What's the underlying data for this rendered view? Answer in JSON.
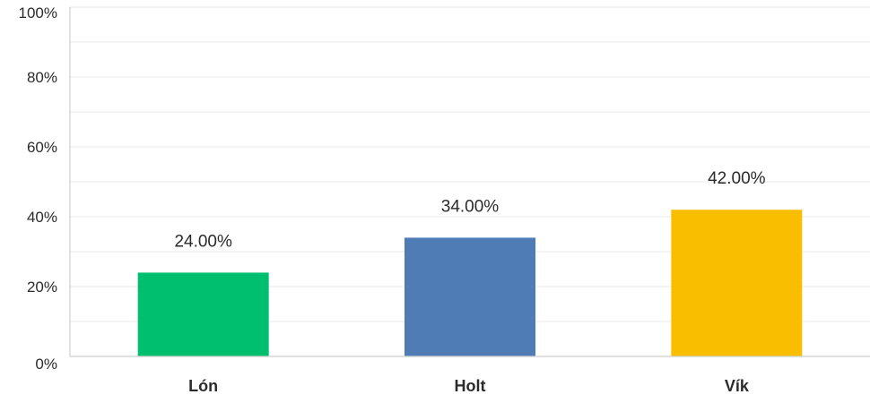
{
  "chart_data": {
    "type": "bar",
    "categories": [
      "Lón",
      "Holt",
      "Vík"
    ],
    "values": [
      24,
      34,
      42
    ],
    "data_labels": [
      "24.00%",
      "34.00%",
      "42.00%"
    ],
    "colors": [
      "#00bf6f",
      "#507cb6",
      "#f9be00"
    ],
    "ylim": [
      0,
      100
    ],
    "y_ticks": [
      0,
      20,
      40,
      60,
      80,
      100
    ],
    "y_tick_labels": [
      "0%",
      "20%",
      "40%",
      "60%",
      "80%",
      "100%"
    ],
    "minor_grid_step": 10,
    "grid": true,
    "legend": "none"
  }
}
